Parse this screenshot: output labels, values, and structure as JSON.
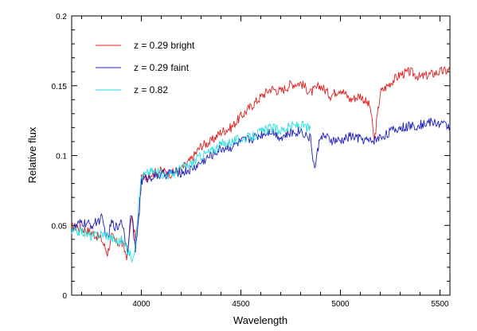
{
  "chart_data": {
    "type": "line",
    "title": "",
    "xlabel": "Wavelength",
    "ylabel": "Relative flux",
    "xlim": [
      3650,
      5550
    ],
    "ylim": [
      0,
      0.2
    ],
    "x_ticks": [
      4000,
      4500,
      5000,
      5500
    ],
    "x_tick_labels": [
      "4000",
      "4500",
      "5000",
      "5500"
    ],
    "y_ticks": [
      0,
      0.05,
      0.1,
      0.15,
      0.2
    ],
    "y_tick_labels": [
      "0",
      "0.05",
      "0.1",
      "0.15",
      "0.2"
    ],
    "grid": false,
    "legend_position": "top-left",
    "series": [
      {
        "name": "z = 0.29 bright",
        "color": "#e02020",
        "x": [
          3650,
          3700,
          3750,
          3800,
          3830,
          3850,
          3880,
          3900,
          3930,
          3950,
          3970,
          3990,
          4000,
          4050,
          4100,
          4150,
          4200,
          4250,
          4300,
          4350,
          4400,
          4450,
          4500,
          4550,
          4600,
          4650,
          4700,
          4750,
          4800,
          4850,
          4900,
          4950,
          5000,
          5050,
          5100,
          5150,
          5170,
          5200,
          5250,
          5300,
          5350,
          5400,
          5450,
          5500,
          5550
        ],
        "y": [
          0.049,
          0.048,
          0.045,
          0.04,
          0.03,
          0.042,
          0.037,
          0.038,
          0.027,
          0.058,
          0.04,
          0.06,
          0.083,
          0.087,
          0.089,
          0.087,
          0.09,
          0.097,
          0.107,
          0.11,
          0.117,
          0.12,
          0.128,
          0.135,
          0.142,
          0.148,
          0.146,
          0.151,
          0.152,
          0.145,
          0.15,
          0.143,
          0.148,
          0.14,
          0.143,
          0.135,
          0.11,
          0.145,
          0.152,
          0.158,
          0.16,
          0.156,
          0.158,
          0.16,
          0.161
        ]
      },
      {
        "name": "z = 0.29 faint",
        "color": "#2020c0",
        "x": [
          3650,
          3700,
          3750,
          3800,
          3830,
          3850,
          3880,
          3900,
          3930,
          3950,
          3970,
          3990,
          4000,
          4050,
          4100,
          4150,
          4200,
          4250,
          4300,
          4350,
          4400,
          4450,
          4500,
          4550,
          4600,
          4650,
          4700,
          4750,
          4800,
          4850,
          4870,
          4900,
          4950,
          5000,
          5050,
          5100,
          5150,
          5200,
          5250,
          5300,
          5350,
          5400,
          5450,
          5500,
          5550
        ],
        "y": [
          0.047,
          0.052,
          0.05,
          0.055,
          0.04,
          0.052,
          0.048,
          0.055,
          0.032,
          0.06,
          0.03,
          0.062,
          0.082,
          0.085,
          0.086,
          0.088,
          0.088,
          0.09,
          0.095,
          0.1,
          0.105,
          0.106,
          0.11,
          0.112,
          0.115,
          0.118,
          0.113,
          0.116,
          0.118,
          0.112,
          0.09,
          0.115,
          0.111,
          0.11,
          0.114,
          0.112,
          0.11,
          0.113,
          0.117,
          0.12,
          0.121,
          0.122,
          0.124,
          0.123,
          0.121
        ]
      },
      {
        "name": "z = 0.82",
        "color": "#22e0e0",
        "x": [
          3650,
          3700,
          3750,
          3800,
          3830,
          3850,
          3880,
          3900,
          3920,
          3940,
          3960,
          3980,
          4000,
          4050,
          4100,
          4150,
          4200,
          4250,
          4300,
          4350,
          4400,
          4450,
          4500,
          4550,
          4600,
          4650,
          4700,
          4750,
          4800,
          4850
        ],
        "y": [
          0.045,
          0.046,
          0.042,
          0.044,
          0.043,
          0.041,
          0.038,
          0.04,
          0.035,
          0.03,
          0.025,
          0.055,
          0.085,
          0.089,
          0.087,
          0.086,
          0.091,
          0.094,
          0.1,
          0.103,
          0.108,
          0.11,
          0.112,
          0.113,
          0.117,
          0.12,
          0.118,
          0.121,
          0.122,
          0.119
        ]
      }
    ]
  }
}
